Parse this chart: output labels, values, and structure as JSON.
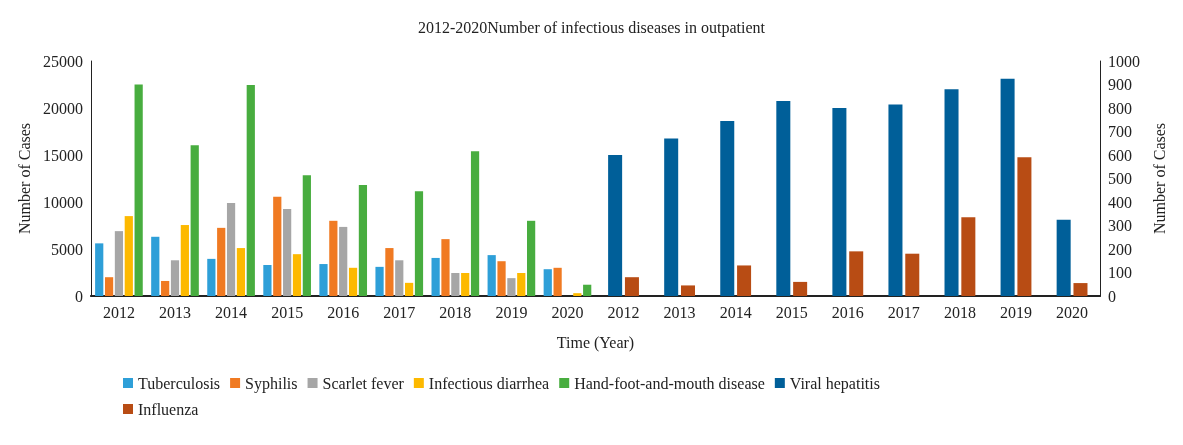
{
  "chart_data": {
    "type": "bar",
    "title": "2012-2020Number of infectious diseases in outpatient",
    "xlabel": "Time (Year)",
    "ylabel": "Number of Cases",
    "y2label": "Number of Cases",
    "categories": [
      "2012",
      "2013",
      "2014",
      "2015",
      "2016",
      "2017",
      "2018",
      "2019",
      "2020",
      "2012",
      "2013",
      "2014",
      "2015",
      "2016",
      "2017",
      "2018",
      "2019",
      "2020"
    ],
    "series": [
      {
        "name": "Tuberculosis",
        "color": "#2e9fd8",
        "values": [
          5600,
          6300,
          3950,
          3300,
          3400,
          3100,
          4050,
          4350,
          2850,
          null,
          null,
          null,
          null,
          null,
          null,
          null,
          null,
          null
        ]
      },
      {
        "name": "Syphilis",
        "color": "#f07a22",
        "values": [
          2000,
          1600,
          7250,
          10550,
          8000,
          5100,
          6050,
          3700,
          3000,
          null,
          null,
          null,
          null,
          null,
          null,
          null,
          null,
          null
        ]
      },
      {
        "name": "Scarlet fever",
        "color": "#a6a6a6",
        "values": [
          6900,
          3800,
          9900,
          9250,
          7350,
          3800,
          2450,
          1900,
          null,
          null,
          null,
          null,
          null,
          null,
          null,
          null,
          null,
          null
        ]
      },
      {
        "name": "Infectious diarrhea",
        "color": "#fdb900",
        "values": [
          8500,
          7550,
          5100,
          4450,
          3000,
          1400,
          2450,
          2450,
          300,
          null,
          null,
          null,
          null,
          null,
          null,
          null,
          null,
          null
        ]
      },
      {
        "name": "Hand-foot-and-mouth disease",
        "color": "#48ad3f",
        "values": [
          22500,
          16050,
          22450,
          12850,
          11800,
          11150,
          15400,
          8000,
          1200,
          null,
          null,
          null,
          null,
          null,
          null,
          null,
          null,
          null
        ]
      },
      {
        "name": "Viral hepatitis",
        "color": "#005f99",
        "axis": "y2",
        "values": [
          null,
          null,
          null,
          null,
          null,
          null,
          null,
          null,
          null,
          600,
          670,
          745,
          830,
          800,
          815,
          880,
          925,
          325
        ]
      },
      {
        "name": "Influenza",
        "color": "#b84c14",
        "axis": "y2",
        "values": [
          null,
          null,
          null,
          null,
          null,
          null,
          null,
          null,
          null,
          80,
          45,
          130,
          60,
          190,
          180,
          335,
          590,
          55
        ]
      }
    ],
    "ylim": [
      0,
      25000
    ],
    "yticks": [
      0,
      5000,
      10000,
      15000,
      20000,
      25000
    ],
    "y2lim": [
      0,
      1000
    ],
    "y2ticks": [
      0,
      100,
      200,
      300,
      400,
      500,
      600,
      700,
      800,
      900,
      1000
    ],
    "grid": false,
    "legend": "bottom"
  }
}
